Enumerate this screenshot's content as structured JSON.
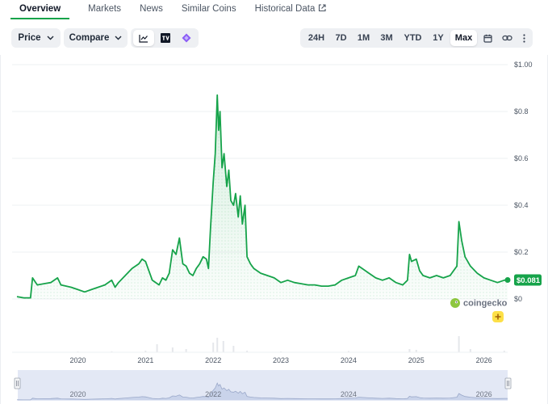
{
  "tabs": [
    {
      "label": "Overview",
      "active": true
    },
    {
      "label": "Markets"
    },
    {
      "label": "News"
    },
    {
      "label": "Similar Coins"
    },
    {
      "label": "Historical Data",
      "icon": "external-link-icon"
    }
  ],
  "toolbar": {
    "price_label": "Price",
    "compare_label": "Compare",
    "chart_type_icons": [
      "line-chart-icon",
      "tradingview-icon",
      "ai-sparkle-icon"
    ],
    "ranges": [
      "24H",
      "7D",
      "1M",
      "3M",
      "YTD",
      "1Y",
      "Max"
    ],
    "selected_range": "Max",
    "extra_icons": [
      "calendar-icon",
      "link-icon",
      "more-vertical-icon"
    ]
  },
  "chart_data": {
    "type": "line",
    "xlabel": "",
    "ylabel": "",
    "x_ticks": [
      "2020",
      "2021",
      "2022",
      "2023",
      "2024",
      "2025",
      "2026"
    ],
    "y_ticks": [
      "$1.00",
      "$0.8",
      "$0.6",
      "$0.4",
      "$0.2",
      "$0"
    ],
    "ylim": [
      0,
      1.0
    ],
    "grid": true,
    "current_price_label": "$0.081",
    "line_color": "#16a34a",
    "watermark": "coingecko",
    "navigator_ticks": [
      "2020",
      "2022",
      "2024",
      "2026"
    ],
    "series": [
      {
        "values": [
          [
            2019.1,
            0.01
          ],
          [
            2019.2,
            0.005
          ],
          [
            2019.3,
            0.005
          ],
          [
            2019.33,
            0.09
          ],
          [
            2019.4,
            0.06
          ],
          [
            2019.5,
            0.065
          ],
          [
            2019.6,
            0.07
          ],
          [
            2019.7,
            0.09
          ],
          [
            2019.75,
            0.06
          ],
          [
            2019.9,
            0.05
          ],
          [
            2020.0,
            0.04
          ],
          [
            2020.1,
            0.03
          ],
          [
            2020.2,
            0.04
          ],
          [
            2020.3,
            0.05
          ],
          [
            2020.4,
            0.06
          ],
          [
            2020.5,
            0.08
          ],
          [
            2020.55,
            0.05
          ],
          [
            2020.6,
            0.07
          ],
          [
            2020.7,
            0.1
          ],
          [
            2020.8,
            0.13
          ],
          [
            2020.9,
            0.15
          ],
          [
            2020.95,
            0.17
          ],
          [
            2021.0,
            0.16
          ],
          [
            2021.05,
            0.12
          ],
          [
            2021.1,
            0.08
          ],
          [
            2021.2,
            0.06
          ],
          [
            2021.25,
            0.09
          ],
          [
            2021.3,
            0.08
          ],
          [
            2021.35,
            0.11
          ],
          [
            2021.4,
            0.21
          ],
          [
            2021.45,
            0.19
          ],
          [
            2021.5,
            0.26
          ],
          [
            2021.55,
            0.15
          ],
          [
            2021.6,
            0.14
          ],
          [
            2021.65,
            0.11
          ],
          [
            2021.7,
            0.1
          ],
          [
            2021.75,
            0.13
          ],
          [
            2021.8,
            0.15
          ],
          [
            2021.85,
            0.18
          ],
          [
            2021.9,
            0.17
          ],
          [
            2021.93,
            0.13
          ],
          [
            2021.96,
            0.3
          ],
          [
            2022.0,
            0.5
          ],
          [
            2022.03,
            0.62
          ],
          [
            2022.06,
            0.87
          ],
          [
            2022.08,
            0.72
          ],
          [
            2022.1,
            0.8
          ],
          [
            2022.13,
            0.56
          ],
          [
            2022.16,
            0.62
          ],
          [
            2022.2,
            0.48
          ],
          [
            2022.23,
            0.55
          ],
          [
            2022.26,
            0.42
          ],
          [
            2022.3,
            0.4
          ],
          [
            2022.33,
            0.45
          ],
          [
            2022.37,
            0.35
          ],
          [
            2022.4,
            0.44
          ],
          [
            2022.43,
            0.32
          ],
          [
            2022.47,
            0.4
          ],
          [
            2022.5,
            0.18
          ],
          [
            2022.55,
            0.15
          ],
          [
            2022.6,
            0.13
          ],
          [
            2022.7,
            0.11
          ],
          [
            2022.8,
            0.1
          ],
          [
            2022.9,
            0.09
          ],
          [
            2023.0,
            0.07
          ],
          [
            2023.1,
            0.08
          ],
          [
            2023.2,
            0.07
          ],
          [
            2023.3,
            0.065
          ],
          [
            2023.4,
            0.06
          ],
          [
            2023.5,
            0.06
          ],
          [
            2023.6,
            0.055
          ],
          [
            2023.7,
            0.055
          ],
          [
            2023.8,
            0.06
          ],
          [
            2023.9,
            0.08
          ],
          [
            2024.0,
            0.09
          ],
          [
            2024.1,
            0.1
          ],
          [
            2024.15,
            0.14
          ],
          [
            2024.2,
            0.13
          ],
          [
            2024.3,
            0.11
          ],
          [
            2024.4,
            0.09
          ],
          [
            2024.5,
            0.08
          ],
          [
            2024.6,
            0.09
          ],
          [
            2024.7,
            0.07
          ],
          [
            2024.8,
            0.06
          ],
          [
            2024.87,
            0.08
          ],
          [
            2024.9,
            0.19
          ],
          [
            2024.93,
            0.16
          ],
          [
            2025.0,
            0.17
          ],
          [
            2025.05,
            0.12
          ],
          [
            2025.1,
            0.1
          ],
          [
            2025.2,
            0.09
          ],
          [
            2025.3,
            0.1
          ],
          [
            2025.4,
            0.09
          ],
          [
            2025.5,
            0.1
          ],
          [
            2025.55,
            0.12
          ],
          [
            2025.6,
            0.14
          ],
          [
            2025.63,
            0.33
          ],
          [
            2025.67,
            0.25
          ],
          [
            2025.72,
            0.18
          ],
          [
            2025.8,
            0.14
          ],
          [
            2025.9,
            0.11
          ],
          [
            2026.0,
            0.09
          ],
          [
            2026.1,
            0.08
          ],
          [
            2026.2,
            0.07
          ],
          [
            2026.3,
            0.08
          ],
          [
            2026.35,
            0.081
          ]
        ]
      }
    ],
    "volume": [
      [
        2020.0,
        0.004
      ],
      [
        2020.5,
        0.006
      ],
      [
        2021.0,
        0.01
      ],
      [
        2021.17,
        0.05
      ],
      [
        2021.4,
        0.03
      ],
      [
        2021.6,
        0.02
      ],
      [
        2022.0,
        0.06
      ],
      [
        2022.06,
        0.09
      ],
      [
        2022.15,
        0.07
      ],
      [
        2022.3,
        0.04
      ],
      [
        2022.5,
        0.01
      ],
      [
        2023.0,
        0.005
      ],
      [
        2024.0,
        0.008
      ],
      [
        2024.9,
        0.02
      ],
      [
        2025.0,
        0.015
      ],
      [
        2025.63,
        0.1
      ],
      [
        2025.8,
        0.02
      ],
      [
        2026.3,
        0.01
      ]
    ]
  }
}
